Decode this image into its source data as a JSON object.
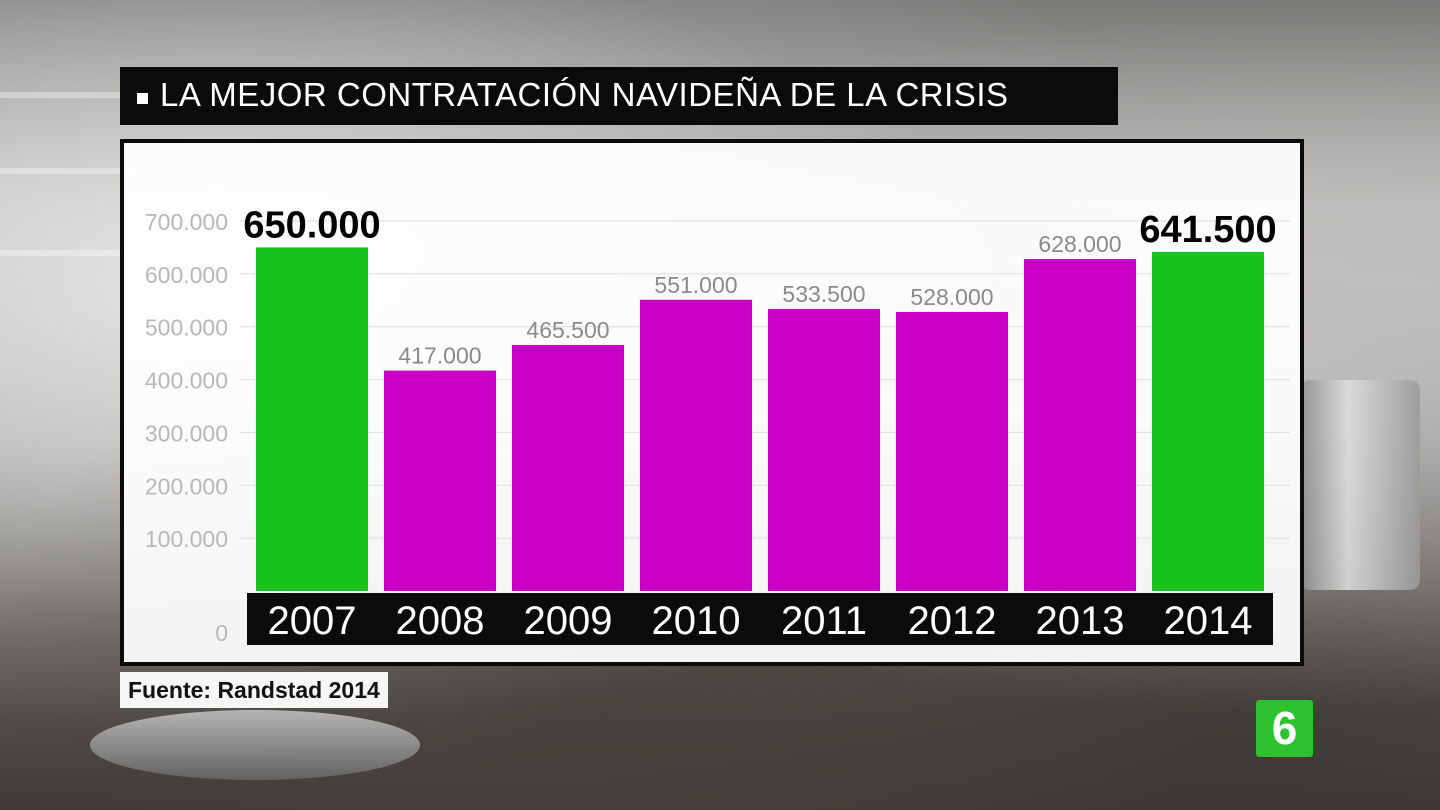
{
  "title": "LA MEJOR CONTRATACIÓN NAVIDEÑA DE LA CRISIS",
  "source": "Fuente: Randstad 2014",
  "logo_text": "6",
  "colors": {
    "highlight": "#17c21c",
    "normal": "#c800c3",
    "label_bg": "#0b0b0b"
  },
  "chart_data": {
    "type": "bar",
    "title": "LA MEJOR CONTRATACIÓN NAVIDEÑA DE LA CRISIS",
    "xlabel": "",
    "ylabel": "",
    "ylim": [
      0,
      700000
    ],
    "grid": true,
    "yticks": [
      0,
      100000,
      200000,
      300000,
      400000,
      500000,
      600000,
      700000
    ],
    "ytick_labels": [
      "0",
      "100.000",
      "200.000",
      "300.000",
      "400.000",
      "500.000",
      "600.000",
      "700.000"
    ],
    "categories": [
      "2007",
      "2008",
      "2009",
      "2010",
      "2011",
      "2012",
      "2013",
      "2014"
    ],
    "values": [
      650000,
      417000,
      465500,
      551000,
      533500,
      528000,
      628000,
      641500
    ],
    "value_labels": [
      "650.000",
      "417.000",
      "465.500",
      "551.000",
      "533.500",
      "528.000",
      "628.000",
      "641.500"
    ],
    "highlighted": [
      true,
      false,
      false,
      false,
      false,
      false,
      false,
      true
    ]
  }
}
